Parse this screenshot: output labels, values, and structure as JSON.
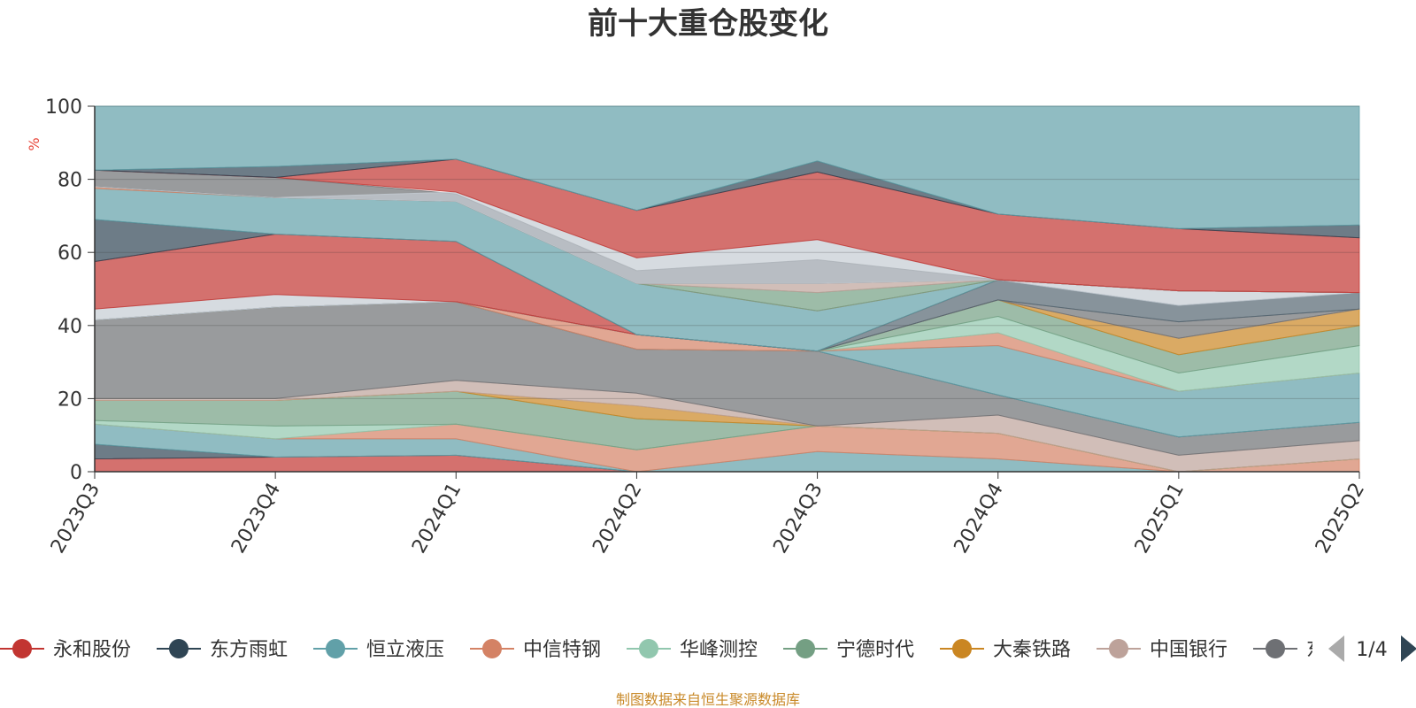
{
  "chart_data": {
    "type": "area",
    "title": "前十大重仓股变化",
    "unit_label": "%",
    "categories": [
      "2023Q3",
      "2023Q4",
      "2024Q1",
      "2024Q2",
      "2024Q3",
      "2024Q4",
      "2025Q1",
      "2025Q2"
    ],
    "ylim": [
      0,
      100
    ],
    "yticks": [
      0,
      20,
      40,
      60,
      80,
      100
    ],
    "grid": true,
    "stacked": true,
    "bands": [
      {
        "color": "#c23531",
        "lower": [
          0,
          0,
          0,
          0,
          0,
          0,
          0,
          0
        ],
        "upper": [
          3.5,
          4,
          4.5,
          0,
          0,
          0,
          0,
          0
        ]
      },
      {
        "color": "#2f4554",
        "lower": [
          3.5,
          4,
          4.5,
          0,
          0,
          0,
          0,
          0
        ],
        "upper": [
          7.5,
          4,
          4.5,
          0,
          0,
          0,
          0,
          0
        ]
      },
      {
        "color": "#61a0a8",
        "lower": [
          7.5,
          4,
          4.5,
          0,
          0,
          0,
          0,
          0
        ],
        "upper": [
          13,
          9,
          9,
          0,
          5.5,
          3.5,
          0,
          0
        ]
      },
      {
        "color": "#d48265",
        "lower": [
          13,
          9,
          9,
          0,
          5.5,
          3.5,
          0,
          0
        ],
        "upper": [
          13,
          9,
          13,
          6,
          12.5,
          10.5,
          0,
          3.5
        ]
      },
      {
        "color": "#91c7ae",
        "lower": [
          13,
          9,
          13,
          6,
          12.5,
          10.5,
          0,
          3.5
        ],
        "upper": [
          14,
          12.5,
          13,
          6,
          12.5,
          10.5,
          0,
          3.5
        ]
      },
      {
        "color": "#749f83",
        "lower": [
          14,
          12.5,
          13,
          6,
          12.5,
          10.5,
          0,
          3.5
        ],
        "upper": [
          19.5,
          19.5,
          22,
          14.5,
          12.5,
          10.5,
          0,
          3.5
        ]
      },
      {
        "color": "#ca8622",
        "lower": [
          19.5,
          19.5,
          22,
          14.5,
          12.5,
          10.5,
          0,
          3.5
        ],
        "upper": [
          19.5,
          19.5,
          22,
          18,
          12.5,
          10.5,
          0,
          3.5
        ]
      },
      {
        "color": "#bda29a",
        "lower": [
          19.5,
          19.5,
          22,
          18,
          12.5,
          10.5,
          0,
          3.5
        ],
        "upper": [
          20,
          20,
          25,
          21.5,
          12.5,
          15.5,
          4.5,
          8.5
        ]
      },
      {
        "color": "#6e7074",
        "lower": [
          20,
          20,
          25,
          21.5,
          12.5,
          15.5,
          4.5,
          8.5
        ],
        "upper": [
          41.5,
          45,
          46.5,
          33.5,
          33,
          21,
          9.5,
          13.5
        ]
      },
      {
        "color": "#546570",
        "lower": [
          41.5,
          45,
          46.5,
          33.5,
          33,
          21,
          9.5,
          13.5
        ],
        "upper": [
          41.5,
          45,
          46.5,
          33.5,
          33,
          21,
          9.5,
          13.5
        ]
      },
      {
        "color": "#61a0a8",
        "lower": [
          41.5,
          45,
          46.5,
          33.5,
          33,
          21,
          9.5,
          13.5
        ],
        "upper": [
          41.5,
          45,
          46.5,
          33.5,
          33,
          34.5,
          22,
          27
        ]
      },
      {
        "color": "#d48265",
        "lower": [
          41.5,
          45,
          46.5,
          33.5,
          33,
          34.5,
          22,
          27
        ],
        "upper": [
          41.5,
          45,
          46.5,
          37.5,
          33,
          38,
          22,
          27
        ]
      },
      {
        "color": "#91c7ae",
        "lower": [
          41.5,
          45,
          46.5,
          37.5,
          33,
          38,
          22,
          27
        ],
        "upper": [
          41.5,
          45,
          46.5,
          37.5,
          33,
          42.5,
          27,
          34.5
        ]
      },
      {
        "color": "#749f83",
        "lower": [
          41.5,
          45,
          46.5,
          37.5,
          33,
          42.5,
          27,
          34.5
        ],
        "upper": [
          41.5,
          45,
          46.5,
          37.5,
          33,
          47,
          32,
          40
        ]
      },
      {
        "color": "#ca8622",
        "lower": [
          41.5,
          45,
          46.5,
          37.5,
          33,
          47,
          32,
          40
        ],
        "upper": [
          41.5,
          45,
          46.5,
          37.5,
          33,
          47,
          36.5,
          44.5
        ]
      },
      {
        "color": "#bda29a",
        "lower": [
          41.5,
          45,
          46.5,
          37.5,
          33,
          47,
          36.5,
          44.5
        ],
        "upper": [
          41.5,
          45,
          46.5,
          37.5,
          33,
          47,
          36.5,
          44.5
        ]
      },
      {
        "color": "#6e7074",
        "lower": [
          41.5,
          45,
          46.5,
          37.5,
          33,
          47,
          36.5,
          44.5
        ],
        "upper": [
          41.5,
          45,
          46.5,
          37.5,
          33,
          47,
          41,
          44.5
        ]
      },
      {
        "color": "#546570",
        "lower": [
          41.5,
          45,
          46.5,
          37.5,
          33,
          47,
          41,
          44.5
        ],
        "upper": [
          41.5,
          45,
          46.5,
          37.5,
          33,
          52.5,
          45.5,
          49
        ]
      },
      {
        "color": "#c4ccd3",
        "lower": [
          41.5,
          45,
          46.5,
          37.5,
          33,
          52.5,
          45.5,
          49
        ],
        "upper": [
          44.5,
          48.5,
          46.5,
          37.5,
          33,
          52.5,
          49.5,
          49
        ]
      },
      {
        "color": "#c23531",
        "lower": [
          44.5,
          48.5,
          46.5,
          37.5,
          33,
          52.5,
          49.5,
          49
        ],
        "upper": [
          57.5,
          65,
          63,
          37.5,
          33,
          52.5,
          49.5,
          49
        ]
      },
      {
        "color": "#2f4554",
        "lower": [
          57.5,
          65,
          63,
          37.5,
          33,
          52.5,
          49.5,
          49
        ],
        "upper": [
          69,
          65,
          63,
          37.5,
          33,
          52.5,
          49.5,
          49
        ]
      },
      {
        "color": "#61a0a8",
        "lower": [
          69,
          65,
          63,
          37.5,
          33,
          52.5,
          49.5,
          49
        ],
        "upper": [
          77.5,
          75,
          74,
          51.5,
          44,
          52.5,
          49.5,
          49
        ]
      },
      {
        "color": "#d48265",
        "lower": [
          77.5,
          75,
          74,
          51.5,
          44,
          52.5,
          49.5,
          49
        ],
        "upper": [
          78,
          75,
          74,
          51.5,
          44,
          52.5,
          49.5,
          49
        ]
      },
      {
        "color": "#749f83",
        "lower": [
          78,
          75,
          74,
          51.5,
          44,
          52.5,
          49.5,
          49
        ],
        "upper": [
          78,
          75,
          74,
          51.5,
          49,
          52.5,
          49.5,
          49
        ]
      },
      {
        "color": "#bda29a",
        "lower": [
          78,
          75,
          74,
          51.5,
          49,
          52.5,
          49.5,
          49
        ],
        "upper": [
          78,
          75,
          74,
          51.5,
          51.5,
          52.5,
          49.5,
          49
        ]
      },
      {
        "color": "#6e7074",
        "lower": [
          78,
          75,
          74,
          51.5,
          51.5,
          52.5,
          49.5,
          49
        ],
        "upper": [
          82.5,
          80.5,
          76,
          55,
          58,
          52.5,
          49.5,
          49
        ]
      },
      {
        "color": "#c4ccd3",
        "lower": [
          78,
          75,
          74,
          51.5,
          51.5,
          52.5,
          49.5,
          49
        ],
        "upper": [
          78,
          75,
          76.5,
          58.5,
          63.5,
          52.5,
          49.5,
          49
        ]
      },
      {
        "color": "#c23531",
        "lower": [
          82.5,
          80.5,
          76.5,
          58.5,
          63.5,
          52.5,
          49.5,
          49
        ],
        "upper": [
          82.5,
          80.5,
          85.5,
          71.5,
          82,
          70.5,
          66.5,
          64
        ]
      },
      {
        "color": "#2f4554",
        "lower": [
          82.5,
          80.5,
          85.5,
          71.5,
          82,
          70.5,
          66.5,
          64
        ],
        "upper": [
          82.5,
          83.5,
          85.5,
          71.5,
          85,
          70.5,
          66.5,
          67.5
        ]
      },
      {
        "color": "#61a0a8",
        "lower": [
          82.5,
          83.5,
          85.5,
          71.5,
          85,
          70.5,
          66.5,
          67.5
        ],
        "upper": [
          100,
          100,
          100,
          100,
          100,
          100,
          100,
          100
        ]
      }
    ],
    "legend": [
      {
        "name": "永和股份",
        "color": "#c23531"
      },
      {
        "name": "东方雨虹",
        "color": "#2f4554"
      },
      {
        "name": "恒立液压",
        "color": "#61a0a8"
      },
      {
        "name": "中信特钢",
        "color": "#d48265"
      },
      {
        "name": "华峰测控",
        "color": "#91c7ae"
      },
      {
        "name": "宁德时代",
        "color": "#749f83"
      },
      {
        "name": "大秦铁路",
        "color": "#ca8622"
      },
      {
        "name": "中国银行",
        "color": "#bda29a"
      },
      {
        "name": "东",
        "color": "#6e7074"
      }
    ],
    "legend_page": "1/4"
  },
  "footer_text": "制图数据来自恒生聚源数据库"
}
